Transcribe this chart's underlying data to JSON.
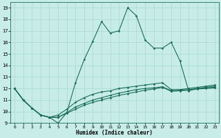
{
  "xlabel": "Humidex (Indice chaleur)",
  "bg_color": "#c8ede9",
  "grid_color": "#a8d8d0",
  "line_color": "#1a6b5a",
  "xlim": [
    -0.5,
    23.5
  ],
  "ylim": [
    9,
    19.5
  ],
  "yticks": [
    9,
    10,
    11,
    12,
    13,
    14,
    15,
    16,
    17,
    18,
    19
  ],
  "xticks": [
    0,
    1,
    2,
    3,
    4,
    5,
    6,
    7,
    8,
    9,
    10,
    11,
    12,
    13,
    14,
    15,
    16,
    17,
    18,
    19,
    20,
    21,
    22,
    23
  ],
  "series": [
    [
      12.0,
      11.0,
      10.3,
      9.7,
      9.5,
      9.0,
      9.9,
      12.5,
      14.5,
      16.1,
      17.8,
      16.8,
      17.0,
      19.0,
      18.3,
      16.2,
      15.5,
      15.5,
      16.0,
      14.4,
      11.8,
      12.0,
      12.1,
      12.2
    ],
    [
      12.0,
      11.0,
      10.3,
      9.7,
      9.5,
      9.7,
      10.2,
      10.8,
      11.2,
      11.5,
      11.7,
      11.8,
      12.0,
      12.1,
      12.2,
      12.3,
      12.4,
      12.5,
      11.9,
      11.9,
      12.0,
      12.1,
      12.2,
      12.3
    ],
    [
      12.0,
      11.0,
      10.3,
      9.7,
      9.5,
      9.5,
      9.9,
      10.4,
      10.7,
      11.0,
      11.2,
      11.4,
      11.6,
      11.75,
      11.9,
      12.0,
      12.05,
      12.15,
      11.8,
      11.85,
      11.9,
      12.0,
      12.05,
      12.1
    ],
    [
      12.0,
      11.0,
      10.3,
      9.7,
      9.5,
      9.5,
      9.85,
      10.2,
      10.55,
      10.8,
      11.0,
      11.2,
      11.4,
      11.55,
      11.7,
      11.85,
      11.95,
      12.1,
      11.75,
      11.8,
      11.85,
      11.95,
      12.0,
      12.05
    ]
  ]
}
